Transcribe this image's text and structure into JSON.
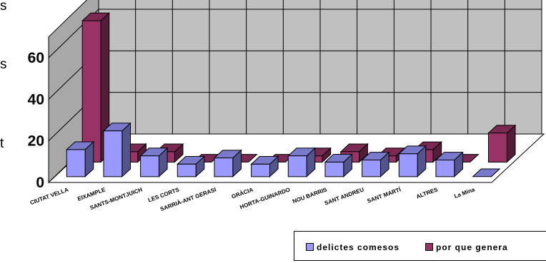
{
  "cut_labels": [
    "s",
    "s",
    "t"
  ],
  "chart_data": {
    "type": "bar",
    "title": "",
    "xlabel": "",
    "ylabel": "",
    "ylim": [
      0,
      70
    ],
    "yticks": [
      0,
      20,
      40,
      60
    ],
    "grid": true,
    "legend": "bottom-right",
    "categories": [
      "CIUTAT VELLA",
      "EIXAMPLE",
      "SANTS-MONTJUICH",
      "LES CORTS",
      "SARRIÀ-ANT GERASI",
      "GRÀCIA",
      "HORTA-GUINARDO",
      "NOU BARRIS",
      "SANT ANDREU",
      "SANT MARTÍ",
      "ALTRES",
      "La Mina"
    ],
    "series": [
      {
        "name": "delictes comesos",
        "color": "#9999ff",
        "values": [
          13,
          22,
          10,
          6,
          9,
          6,
          10,
          7,
          8,
          11,
          8,
          0
        ]
      },
      {
        "name": "por que genera",
        "color": "#993366",
        "values": [
          68,
          5,
          5,
          0,
          0,
          0,
          3,
          5,
          3,
          6,
          0,
          14
        ]
      }
    ]
  }
}
